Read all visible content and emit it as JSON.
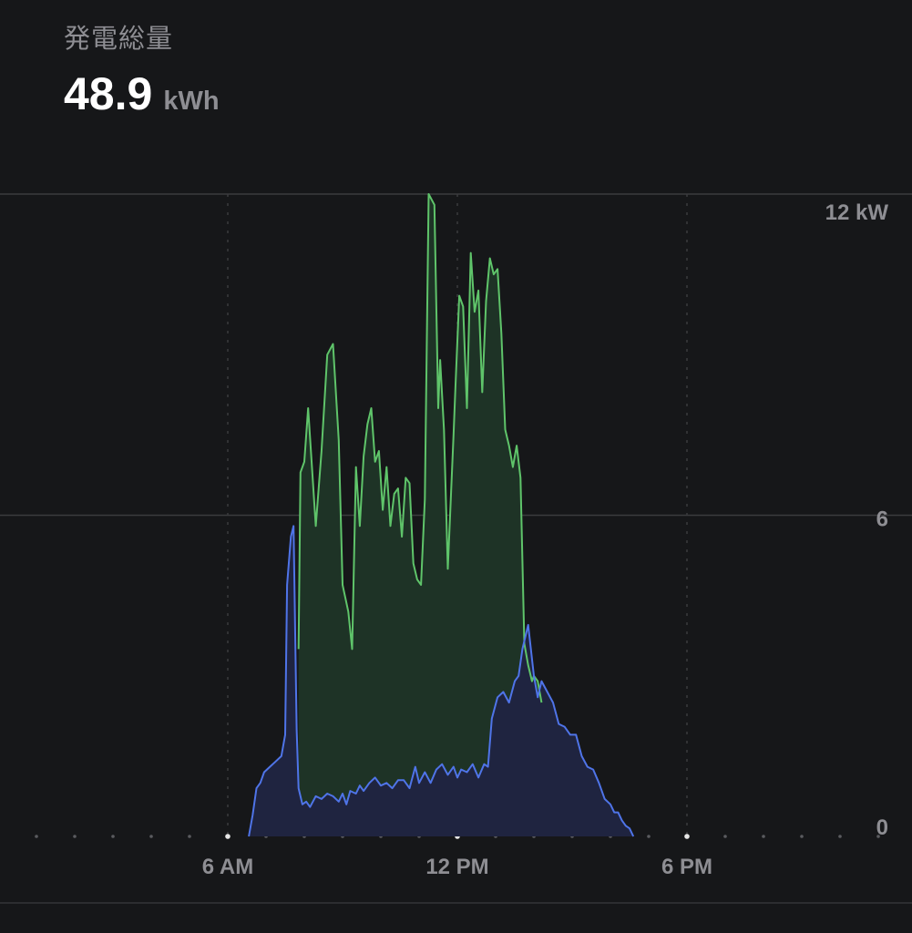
{
  "header": {
    "label": "発電総量",
    "value": "48.9",
    "unit": "kWh"
  },
  "chart_data": {
    "type": "area",
    "title": "",
    "xlabel": "",
    "ylabel": "",
    "x_axis": {
      "ticks": [
        {
          "hour": 6,
          "label": "6 AM"
        },
        {
          "hour": 12,
          "label": "12 PM"
        },
        {
          "hour": 18,
          "label": "6 PM"
        }
      ],
      "range_hours": [
        0,
        24
      ]
    },
    "y_axis": {
      "ticks": [
        {
          "value": 0,
          "label": "0"
        },
        {
          "value": 6,
          "label": "6"
        },
        {
          "value": 12,
          "label": "12 kW"
        }
      ],
      "ylim": [
        0,
        12
      ],
      "unit": "kW",
      "position": "right"
    },
    "grid": {
      "horizontal": true,
      "vertical_dotted": true
    },
    "colors": {
      "background": "#161719",
      "series_green": "#5fc46a",
      "series_blue": "#4f74e8",
      "fill_green": "#1e3326",
      "fill_blue": "#1f2440",
      "gridline": "#3a3b3e",
      "axis_text": "#8e8e93"
    },
    "series": [
      {
        "key": "green",
        "color": "#5fc46a",
        "x": [
          7.85,
          7.9,
          8.0,
          8.1,
          8.2,
          8.3,
          8.45,
          8.6,
          8.75,
          8.9,
          9.0,
          9.15,
          9.25,
          9.35,
          9.45,
          9.55,
          9.65,
          9.75,
          9.85,
          9.95,
          10.05,
          10.15,
          10.25,
          10.35,
          10.45,
          10.55,
          10.65,
          10.75,
          10.85,
          10.95,
          11.05,
          11.15,
          11.25,
          11.4,
          11.5,
          11.55,
          11.65,
          11.75,
          11.9,
          11.95,
          12.05,
          12.15,
          12.25,
          12.35,
          12.45,
          12.55,
          12.65,
          12.75,
          12.85,
          12.95,
          13.05,
          13.15,
          13.25,
          13.35,
          13.45,
          13.55,
          13.65,
          13.75,
          13.85,
          13.95,
          14.0,
          14.1,
          14.2
        ],
        "values": [
          3.5,
          6.8,
          7.0,
          8.0,
          6.9,
          5.8,
          7.2,
          9.0,
          9.2,
          7.4,
          4.7,
          4.2,
          3.5,
          6.9,
          5.8,
          7.1,
          7.7,
          8.0,
          7.0,
          7.2,
          6.1,
          6.9,
          5.8,
          6.4,
          6.5,
          5.6,
          6.7,
          6.6,
          5.1,
          4.8,
          4.7,
          6.3,
          12.0,
          11.8,
          8.0,
          8.9,
          7.6,
          5.0,
          7.5,
          8.4,
          10.1,
          9.9,
          8.0,
          10.9,
          9.8,
          10.2,
          8.3,
          10.0,
          10.8,
          10.5,
          10.6,
          9.4,
          7.6,
          7.3,
          6.9,
          7.3,
          6.7,
          3.6,
          3.2,
          2.9,
          3.0,
          2.9,
          2.5
        ]
      },
      {
        "key": "blue",
        "color": "#4f74e8",
        "x": [
          6.55,
          6.65,
          6.75,
          6.85,
          6.95,
          7.1,
          7.25,
          7.4,
          7.5,
          7.55,
          7.65,
          7.72,
          7.8,
          7.85,
          7.95,
          8.05,
          8.15,
          8.3,
          8.45,
          8.6,
          8.75,
          8.9,
          9.0,
          9.1,
          9.2,
          9.35,
          9.45,
          9.55,
          9.7,
          9.85,
          10.0,
          10.15,
          10.3,
          10.45,
          10.6,
          10.75,
          10.9,
          11.0,
          11.15,
          11.3,
          11.45,
          11.6,
          11.75,
          11.9,
          12.0,
          12.1,
          12.25,
          12.4,
          12.55,
          12.7,
          12.8,
          12.9,
          13.05,
          13.2,
          13.35,
          13.5,
          13.6,
          13.7,
          13.85,
          14.0,
          14.1,
          14.2,
          14.35,
          14.5,
          14.65,
          14.8,
          14.95,
          15.1,
          15.25,
          15.4,
          15.55,
          15.7,
          15.85,
          16.0,
          16.1,
          16.2,
          16.3,
          16.4,
          16.5,
          16.6
        ],
        "values": [
          0.0,
          0.4,
          0.9,
          1.0,
          1.2,
          1.3,
          1.4,
          1.5,
          1.9,
          4.7,
          5.6,
          5.8,
          2.0,
          0.9,
          0.6,
          0.65,
          0.55,
          0.75,
          0.7,
          0.8,
          0.75,
          0.65,
          0.8,
          0.6,
          0.85,
          0.8,
          0.95,
          0.85,
          1.0,
          1.1,
          0.95,
          1.0,
          0.9,
          1.05,
          1.05,
          0.9,
          1.3,
          1.0,
          1.2,
          1.0,
          1.25,
          1.35,
          1.15,
          1.3,
          1.1,
          1.25,
          1.2,
          1.35,
          1.1,
          1.35,
          1.3,
          2.2,
          2.6,
          2.7,
          2.5,
          2.9,
          3.0,
          3.5,
          3.95,
          3.0,
          2.6,
          2.9,
          2.7,
          2.5,
          2.1,
          2.05,
          1.9,
          1.9,
          1.5,
          1.3,
          1.25,
          1.0,
          0.7,
          0.6,
          0.45,
          0.45,
          0.3,
          0.2,
          0.15,
          0.0
        ]
      }
    ]
  }
}
